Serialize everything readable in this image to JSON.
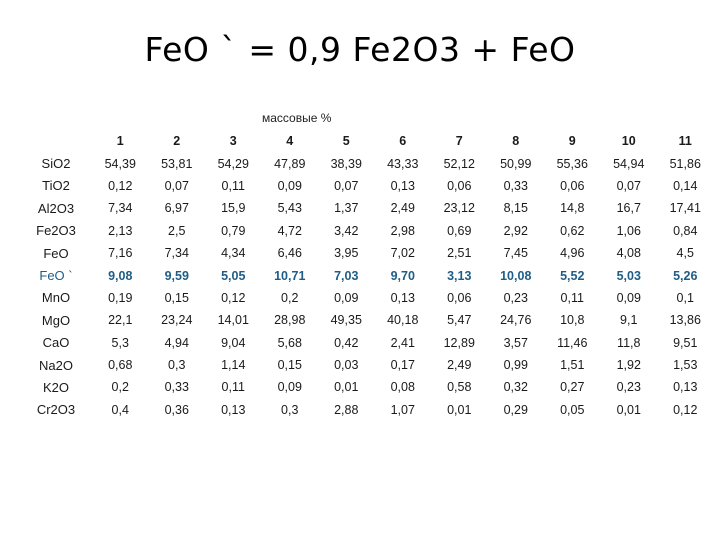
{
  "title": "FeO ` = 0,9 Fe2O3 + FeO",
  "unit_label": "массовые %",
  "columns": [
    "1",
    "2",
    "3",
    "4",
    "5",
    "6",
    "7",
    "8",
    "9",
    "10",
    "11"
  ],
  "rows": [
    {
      "label": "SiO2",
      "values": [
        "54,39",
        "53,81",
        "54,29",
        "47,89",
        "38,39",
        "43,33",
        "52,12",
        "50,99",
        "55,36",
        "54,94",
        "51,86"
      ]
    },
    {
      "label": "TiO2",
      "values": [
        "0,12",
        "0,07",
        "0,11",
        "0,09",
        "0,07",
        "0,13",
        "0,06",
        "0,33",
        "0,06",
        "0,07",
        "0,14"
      ]
    },
    {
      "label": "Al2O3",
      "values": [
        "7,34",
        "6,97",
        "15,9",
        "5,43",
        "1,37",
        "2,49",
        "23,12",
        "8,15",
        "14,8",
        "16,7",
        "17,41"
      ]
    },
    {
      "label": "Fe2O3",
      "values": [
        "2,13",
        "2,5",
        "0,79",
        "4,72",
        "3,42",
        "2,98",
        "0,69",
        "2,92",
        "0,62",
        "1,06",
        "0,84"
      ]
    },
    {
      "label": "FeO",
      "values": [
        "7,16",
        "7,34",
        "4,34",
        "6,46",
        "3,95",
        "7,02",
        "2,51",
        "7,45",
        "4,96",
        "4,08",
        "4,5"
      ]
    },
    {
      "label": "FeO `",
      "values": [
        "9,08",
        "9,59",
        "5,05",
        "10,71",
        "7,03",
        "9,70",
        "3,13",
        "10,08",
        "5,52",
        "5,03",
        "5,26"
      ]
    },
    {
      "label": "MnO",
      "values": [
        "0,19",
        "0,15",
        "0,12",
        "0,2",
        "0,09",
        "0,13",
        "0,06",
        "0,23",
        "0,11",
        "0,09",
        "0,1"
      ]
    },
    {
      "label": "MgO",
      "values": [
        "22,1",
        "23,24",
        "14,01",
        "28,98",
        "49,35",
        "40,18",
        "5,47",
        "24,76",
        "10,8",
        "9,1",
        "13,86"
      ]
    },
    {
      "label": "CaO",
      "values": [
        "5,3",
        "4,94",
        "9,04",
        "5,68",
        "0,42",
        "2,41",
        "12,89",
        "3,57",
        "11,46",
        "11,8",
        "9,51"
      ]
    },
    {
      "label": "Na2O",
      "values": [
        "0,68",
        "0,3",
        "1,14",
        "0,15",
        "0,03",
        "0,17",
        "2,49",
        "0,99",
        "1,51",
        "1,92",
        "1,53"
      ]
    },
    {
      "label": "K2O",
      "values": [
        "0,2",
        "0,33",
        "0,11",
        "0,09",
        "0,01",
        "0,08",
        "0,58",
        "0,32",
        "0,27",
        "0,23",
        "0,13"
      ]
    },
    {
      "label": "Cr2O3",
      "values": [
        "0,4",
        "0,36",
        "0,13",
        "0,3",
        "2,88",
        "1,07",
        "0,01",
        "0,29",
        "0,05",
        "0,01",
        "0,12"
      ]
    }
  ],
  "highlight_row": "FeO `",
  "highlight_color": "#1f5d86"
}
